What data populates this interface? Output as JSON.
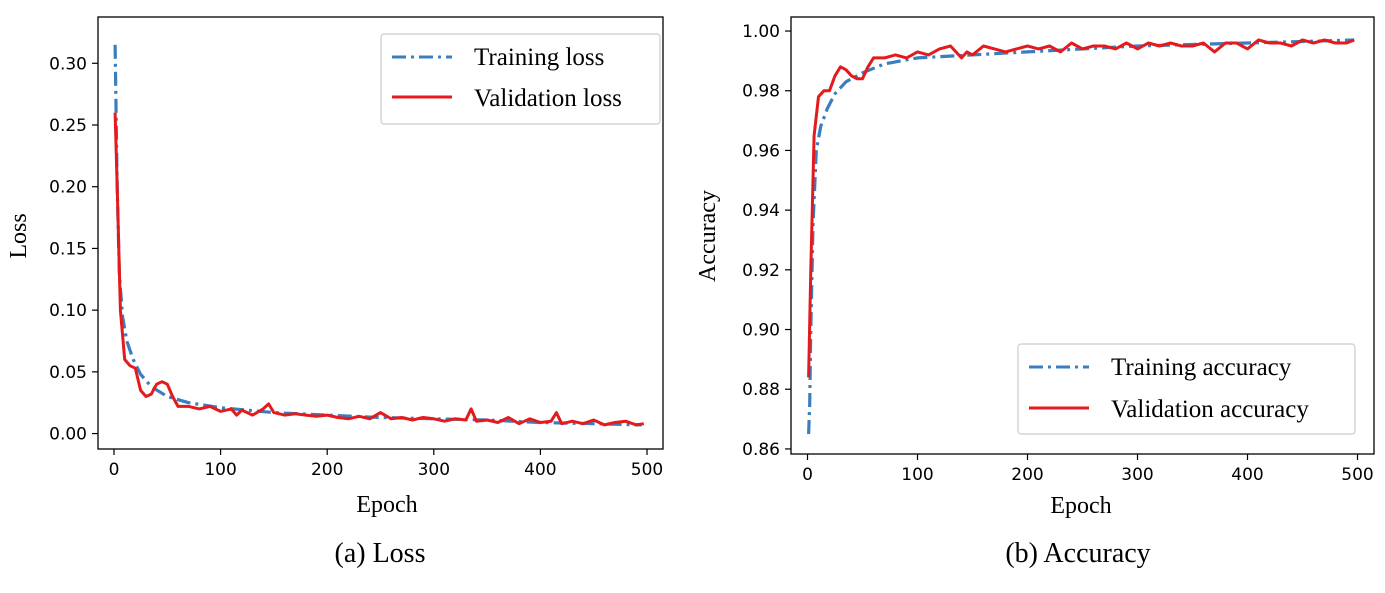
{
  "colors": {
    "training": "#3a7ebf",
    "validation": "#e41a1c"
  },
  "chart_data": [
    {
      "type": "line",
      "caption": "(a) Loss",
      "xlabel": "Epoch",
      "ylabel": "Loss",
      "xlim": [
        -15,
        515
      ],
      "ylim": [
        -0.0125,
        0.3375
      ],
      "xticks": [
        {
          "v": 0,
          "label": "0"
        },
        {
          "v": 100,
          "label": "100"
        },
        {
          "v": 200,
          "label": "200"
        },
        {
          "v": 300,
          "label": "300"
        },
        {
          "v": 400,
          "label": "400"
        },
        {
          "v": 500,
          "label": "500"
        }
      ],
      "yticks": [
        {
          "v": 0.0,
          "label": "0.00"
        },
        {
          "v": 0.05,
          "label": "0.05"
        },
        {
          "v": 0.1,
          "label": "0.10"
        },
        {
          "v": 0.15,
          "label": "0.15"
        },
        {
          "v": 0.2,
          "label": "0.20"
        },
        {
          "v": 0.25,
          "label": "0.25"
        },
        {
          "v": 0.3,
          "label": "0.30"
        }
      ],
      "grid": false,
      "legend": "top-right",
      "series": [
        {
          "name": "Training loss",
          "style": "dashdot",
          "color": "#3a7ebf",
          "x": [
            1,
            3,
            5,
            8,
            12,
            18,
            25,
            35,
            50,
            70,
            100,
            150,
            200,
            250,
            300,
            350,
            400,
            450,
            495
          ],
          "y": [
            0.315,
            0.2,
            0.13,
            0.095,
            0.075,
            0.06,
            0.048,
            0.038,
            0.03,
            0.025,
            0.021,
            0.017,
            0.015,
            0.013,
            0.012,
            0.011,
            0.009,
            0.008,
            0.007
          ]
        },
        {
          "name": "Validation loss",
          "style": "solid",
          "color": "#e41a1c",
          "x": [
            1,
            3,
            6,
            10,
            15,
            20,
            25,
            30,
            35,
            40,
            45,
            50,
            55,
            60,
            70,
            80,
            90,
            100,
            110,
            115,
            120,
            130,
            140,
            145,
            150,
            160,
            170,
            180,
            190,
            200,
            210,
            220,
            230,
            240,
            250,
            260,
            270,
            280,
            290,
            300,
            310,
            320,
            330,
            335,
            340,
            350,
            360,
            370,
            380,
            390,
            400,
            410,
            415,
            420,
            430,
            440,
            450,
            460,
            470,
            480,
            490,
            497
          ],
          "y": [
            0.26,
            0.2,
            0.1,
            0.06,
            0.055,
            0.053,
            0.035,
            0.03,
            0.032,
            0.04,
            0.042,
            0.04,
            0.03,
            0.022,
            0.022,
            0.02,
            0.022,
            0.018,
            0.02,
            0.015,
            0.019,
            0.015,
            0.02,
            0.024,
            0.017,
            0.015,
            0.016,
            0.015,
            0.014,
            0.015,
            0.013,
            0.012,
            0.014,
            0.012,
            0.017,
            0.012,
            0.013,
            0.011,
            0.013,
            0.012,
            0.01,
            0.012,
            0.011,
            0.02,
            0.01,
            0.011,
            0.009,
            0.013,
            0.008,
            0.012,
            0.009,
            0.01,
            0.017,
            0.008,
            0.01,
            0.008,
            0.011,
            0.007,
            0.009,
            0.01,
            0.007,
            0.008
          ]
        }
      ]
    },
    {
      "type": "line",
      "caption": "(b) Accuracy",
      "xlabel": "Epoch",
      "ylabel": "Accuracy",
      "xlim": [
        -15,
        515
      ],
      "ylim": [
        0.8583,
        1.0047
      ],
      "xticks": [
        {
          "v": 0,
          "label": "0"
        },
        {
          "v": 100,
          "label": "100"
        },
        {
          "v": 200,
          "label": "200"
        },
        {
          "v": 300,
          "label": "300"
        },
        {
          "v": 400,
          "label": "400"
        },
        {
          "v": 500,
          "label": "500"
        }
      ],
      "yticks": [
        {
          "v": 0.86,
          "label": "0.86"
        },
        {
          "v": 0.88,
          "label": "0.88"
        },
        {
          "v": 0.9,
          "label": "0.90"
        },
        {
          "v": 0.92,
          "label": "0.92"
        },
        {
          "v": 0.94,
          "label": "0.94"
        },
        {
          "v": 0.96,
          "label": "0.96"
        },
        {
          "v": 0.98,
          "label": "0.98"
        },
        {
          "v": 1.0,
          "label": "1.00"
        }
      ],
      "grid": false,
      "legend": "bottom-right",
      "series": [
        {
          "name": "Training accuracy",
          "style": "dashdot",
          "color": "#3a7ebf",
          "x": [
            1,
            2,
            3,
            5,
            8,
            12,
            18,
            25,
            35,
            50,
            70,
            100,
            150,
            200,
            250,
            300,
            350,
            400,
            450,
            497
          ],
          "y": [
            0.865,
            0.875,
            0.9,
            0.935,
            0.96,
            0.968,
            0.974,
            0.979,
            0.983,
            0.986,
            0.989,
            0.991,
            0.992,
            0.993,
            0.994,
            0.995,
            0.9955,
            0.996,
            0.9965,
            0.997
          ]
        },
        {
          "name": "Validation accuracy",
          "style": "solid",
          "color": "#e41a1c",
          "x": [
            1,
            3,
            6,
            10,
            15,
            20,
            25,
            30,
            35,
            40,
            45,
            50,
            55,
            60,
            70,
            80,
            90,
            100,
            110,
            120,
            130,
            140,
            145,
            150,
            160,
            170,
            180,
            190,
            200,
            210,
            220,
            230,
            240,
            250,
            260,
            270,
            280,
            290,
            300,
            310,
            320,
            330,
            340,
            350,
            360,
            370,
            380,
            390,
            400,
            410,
            420,
            430,
            440,
            450,
            460,
            470,
            480,
            490,
            497
          ],
          "y": [
            0.884,
            0.92,
            0.965,
            0.978,
            0.98,
            0.98,
            0.985,
            0.988,
            0.987,
            0.985,
            0.984,
            0.984,
            0.988,
            0.991,
            0.991,
            0.992,
            0.991,
            0.993,
            0.992,
            0.994,
            0.995,
            0.991,
            0.993,
            0.992,
            0.995,
            0.994,
            0.993,
            0.994,
            0.995,
            0.994,
            0.995,
            0.993,
            0.996,
            0.994,
            0.995,
            0.995,
            0.994,
            0.996,
            0.994,
            0.996,
            0.995,
            0.996,
            0.995,
            0.995,
            0.996,
            0.993,
            0.996,
            0.996,
            0.994,
            0.997,
            0.996,
            0.996,
            0.995,
            0.997,
            0.996,
            0.997,
            0.996,
            0.996,
            0.997
          ]
        }
      ]
    }
  ]
}
